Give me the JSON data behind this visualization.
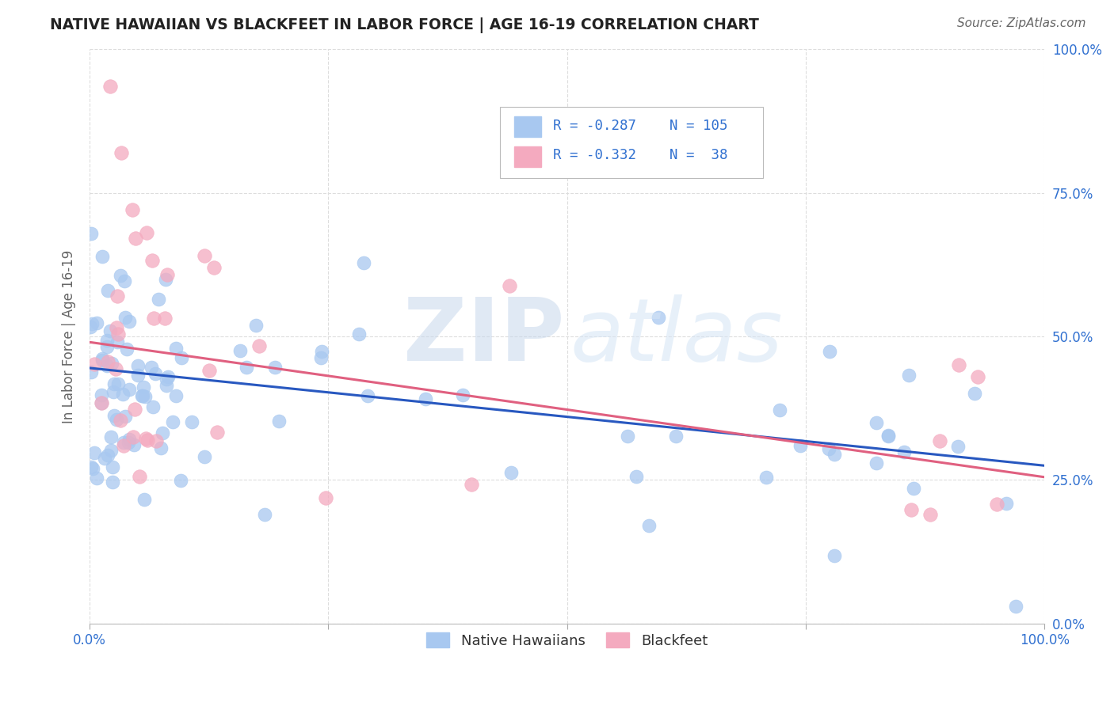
{
  "title": "NATIVE HAWAIIAN VS BLACKFEET IN LABOR FORCE | AGE 16-19 CORRELATION CHART",
  "source": "Source: ZipAtlas.com",
  "ylabel": "In Labor Force | Age 16-19",
  "ytick_labels": [
    "0.0%",
    "25.0%",
    "50.0%",
    "75.0%",
    "100.0%"
  ],
  "ytick_values": [
    0.0,
    0.25,
    0.5,
    0.75,
    1.0
  ],
  "xlim": [
    0.0,
    1.0
  ],
  "ylim": [
    0.0,
    1.0
  ],
  "color_blue": "#A8C8F0",
  "color_pink": "#F4AABF",
  "color_blue_text": "#3070D0",
  "color_pink_line": "#E06080",
  "color_blue_line": "#2858C0",
  "background_color": "#FFFFFF",
  "grid_color": "#DDDDDD",
  "title_color": "#222222",
  "trend_blue_y0": 0.445,
  "trend_blue_y1": 0.275,
  "trend_pink_y0": 0.49,
  "trend_pink_y1": 0.255
}
